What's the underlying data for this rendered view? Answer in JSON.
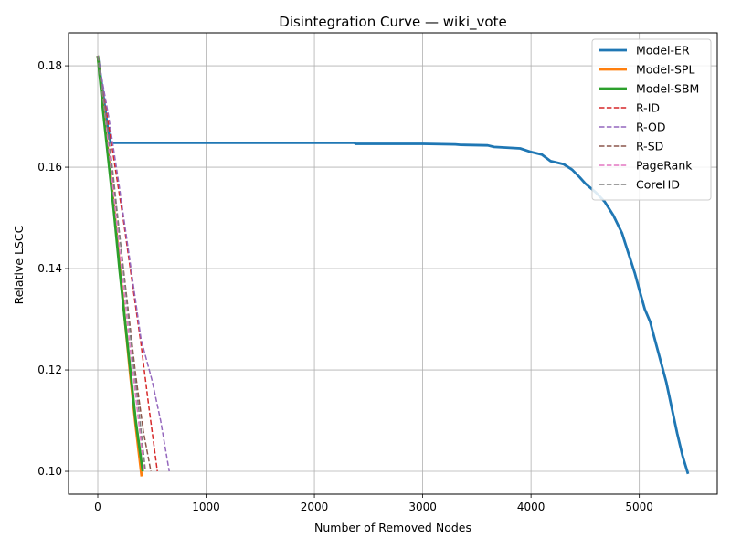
{
  "chart_data": {
    "type": "line",
    "title": "Disintegration Curve — wiki_vote",
    "xlabel": "Number of Removed Nodes",
    "ylabel": "Relative LSCC",
    "xlim": [
      -270,
      5720
    ],
    "ylim": [
      0.0955,
      0.1865
    ],
    "xticks": [
      0,
      1000,
      2000,
      3000,
      4000,
      5000
    ],
    "yticks": [
      0.1,
      0.12,
      0.14,
      0.16,
      0.18
    ],
    "grid": true,
    "legend_position": "top-right",
    "series": [
      {
        "name": "Model-ER",
        "color": "#1f77b4",
        "dash": "solid",
        "points": [
          [
            0,
            0.182
          ],
          [
            40,
            0.176
          ],
          [
            90,
            0.168
          ],
          [
            120,
            0.1648
          ],
          [
            500,
            0.1648
          ],
          [
            1000,
            0.1648
          ],
          [
            1500,
            0.1648
          ],
          [
            2000,
            0.1648
          ],
          [
            2370,
            0.1648
          ],
          [
            2380,
            0.1646
          ],
          [
            3000,
            0.1646
          ],
          [
            3300,
            0.1645
          ],
          [
            3350,
            0.1644
          ],
          [
            3600,
            0.1643
          ],
          [
            3660,
            0.164
          ],
          [
            3900,
            0.1637
          ],
          [
            4000,
            0.163
          ],
          [
            4100,
            0.1625
          ],
          [
            4180,
            0.1612
          ],
          [
            4300,
            0.1606
          ],
          [
            4380,
            0.1595
          ],
          [
            4450,
            0.158
          ],
          [
            4500,
            0.1568
          ],
          [
            4600,
            0.155
          ],
          [
            4680,
            0.1532
          ],
          [
            4760,
            0.1505
          ],
          [
            4840,
            0.147
          ],
          [
            4900,
            0.143
          ],
          [
            4960,
            0.139
          ],
          [
            5000,
            0.1358
          ],
          [
            5050,
            0.132
          ],
          [
            5100,
            0.1295
          ],
          [
            5150,
            0.1255
          ],
          [
            5200,
            0.1215
          ],
          [
            5250,
            0.1175
          ],
          [
            5300,
            0.1125
          ],
          [
            5350,
            0.1075
          ],
          [
            5400,
            0.103
          ],
          [
            5450,
            0.0995
          ]
        ]
      },
      {
        "name": "Model-SPL",
        "color": "#ff7f0e",
        "dash": "solid",
        "points": [
          [
            0,
            0.182
          ],
          [
            50,
            0.172
          ],
          [
            100,
            0.162
          ],
          [
            150,
            0.152
          ],
          [
            200,
            0.141
          ],
          [
            250,
            0.13
          ],
          [
            300,
            0.119
          ],
          [
            350,
            0.109
          ],
          [
            405,
            0.099
          ]
        ]
      },
      {
        "name": "Model-SBM",
        "color": "#2ca02c",
        "dash": "solid",
        "points": [
          [
            0,
            0.182
          ],
          [
            50,
            0.171
          ],
          [
            100,
            0.161
          ],
          [
            150,
            0.151
          ],
          [
            200,
            0.14
          ],
          [
            250,
            0.13
          ],
          [
            300,
            0.12
          ],
          [
            350,
            0.11
          ],
          [
            415,
            0.1
          ]
        ]
      },
      {
        "name": "R-ID",
        "color": "#d62728",
        "dash": "dashed",
        "points": [
          [
            0,
            0.182
          ],
          [
            80,
            0.171
          ],
          [
            160,
            0.16
          ],
          [
            240,
            0.149
          ],
          [
            320,
            0.137
          ],
          [
            400,
            0.125
          ],
          [
            470,
            0.113
          ],
          [
            550,
            0.1
          ]
        ]
      },
      {
        "name": "R-OD",
        "color": "#9467bd",
        "dash": "dashed",
        "points": [
          [
            0,
            0.182
          ],
          [
            100,
            0.17
          ],
          [
            200,
            0.156
          ],
          [
            300,
            0.141
          ],
          [
            400,
            0.126
          ],
          [
            500,
            0.118
          ],
          [
            580,
            0.11
          ],
          [
            660,
            0.1
          ]
        ]
      },
      {
        "name": "R-SD",
        "color": "#8c564b",
        "dash": "dashed",
        "points": [
          [
            0,
            0.182
          ],
          [
            70,
            0.171
          ],
          [
            140,
            0.158
          ],
          [
            210,
            0.145
          ],
          [
            280,
            0.132
          ],
          [
            350,
            0.119
          ],
          [
            420,
            0.108
          ],
          [
            490,
            0.1
          ]
        ]
      },
      {
        "name": "PageRank",
        "color": "#e377c2",
        "dash": "dashed",
        "points": [
          [
            0,
            0.182
          ],
          [
            60,
            0.172
          ],
          [
            120,
            0.16
          ],
          [
            180,
            0.148
          ],
          [
            240,
            0.136
          ],
          [
            300,
            0.124
          ],
          [
            360,
            0.113
          ],
          [
            430,
            0.1
          ]
        ]
      },
      {
        "name": "CoreHD",
        "color": "#7f7f7f",
        "dash": "dashed",
        "points": [
          [
            0,
            0.182
          ],
          [
            70,
            0.171
          ],
          [
            140,
            0.159
          ],
          [
            200,
            0.147
          ],
          [
            260,
            0.135
          ],
          [
            320,
            0.123
          ],
          [
            380,
            0.112
          ],
          [
            440,
            0.1
          ]
        ]
      }
    ]
  }
}
